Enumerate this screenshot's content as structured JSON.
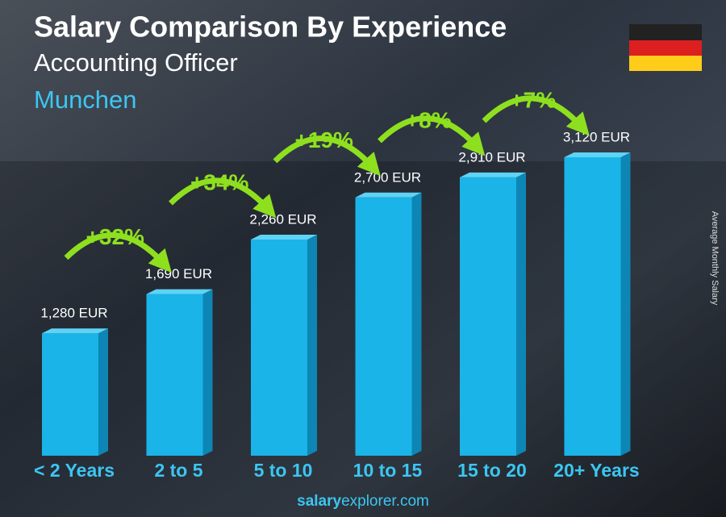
{
  "chart_data": {
    "type": "bar3d",
    "title": "Salary Comparison By Experience",
    "subtitle": "Accounting Officer",
    "location": "Munchen",
    "y_axis_label": "Average Monthly Salary",
    "categories": [
      "< 2 Years",
      "2 to 5",
      "5 to 10",
      "10 to 15",
      "15 to 20",
      "20+ Years"
    ],
    "values": [
      1280,
      1690,
      2260,
      2700,
      2910,
      3120
    ],
    "value_labels": [
      "1,280 EUR",
      "1,690 EUR",
      "2,260 EUR",
      "2,700 EUR",
      "2,910 EUR",
      "3,120 EUR"
    ],
    "increases": [
      "+32%",
      "+34%",
      "+19%",
      "+8%",
      "+7%"
    ],
    "color": "#1ab4e8",
    "increase_color": "#8ee01f",
    "footer": {
      "brand": "salary",
      "domain": "explorer.com"
    }
  }
}
